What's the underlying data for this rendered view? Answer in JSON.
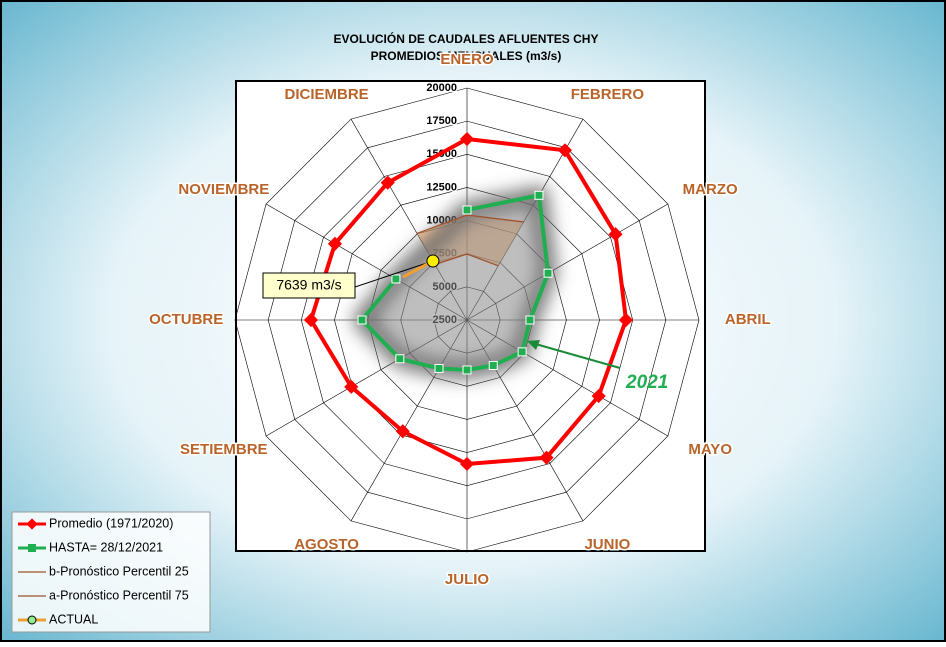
{
  "chart_data": {
    "type": "radar",
    "title": "EVOLUCIÓN DE CAUDALES AFLUENTES CHY",
    "subtitle": "PROMEDIOS MENSUALES (m3/s)",
    "categories": [
      "ENERO",
      "FEBRERO",
      "MARZO",
      "ABRIL",
      "MAYO",
      "JUNIO",
      "JULIO",
      "AGOSTO",
      "SETIEMBRE",
      "OCTUBRE",
      "NOVIEMBRE",
      "DICIEMBRE"
    ],
    "ylim": [
      2500,
      20000
    ],
    "yticks": [
      2500,
      5000,
      7500,
      10000,
      12500,
      15000,
      17500,
      20000
    ],
    "grid": true,
    "legend": "bottom-left",
    "series": [
      {
        "name": "Promedio (1971/2020)",
        "color": "#ff0000",
        "values": [
          16150,
          17280,
          15440,
          14490,
          13970,
          14490,
          13360,
          12190,
          12580,
          14270,
          14000,
          14460
        ]
      },
      {
        "name": "HASTA= 28/12/2021",
        "color": "#1fae50",
        "values": [
          10800,
          13360,
          9560,
          7250,
          7300,
          6460,
          6270,
          6720,
          8350,
          10420,
          8690,
          null
        ]
      },
      {
        "name": "b-Pronóstico Percentil 25",
        "color": "#a0522d",
        "values": [
          7480,
          7220,
          null,
          null,
          null,
          null,
          null,
          null,
          null,
          null,
          null,
          7330
        ]
      },
      {
        "name": "a-Pronóstico Percentil 75",
        "color": "#a0522d",
        "values": [
          10420,
          11040,
          null,
          null,
          null,
          null,
          null,
          null,
          null,
          null,
          null,
          10040
        ]
      },
      {
        "name": "ACTUAL",
        "color": "#f0a030",
        "values": [
          null,
          null,
          null,
          null,
          null,
          null,
          null,
          null,
          null,
          null,
          null,
          7639
        ],
        "value_labels": [
          null,
          null,
          null,
          null,
          null,
          null,
          null,
          null,
          null,
          null,
          null,
          "7639 m3/s"
        ]
      }
    ],
    "annotations": [
      "2021"
    ]
  }
}
